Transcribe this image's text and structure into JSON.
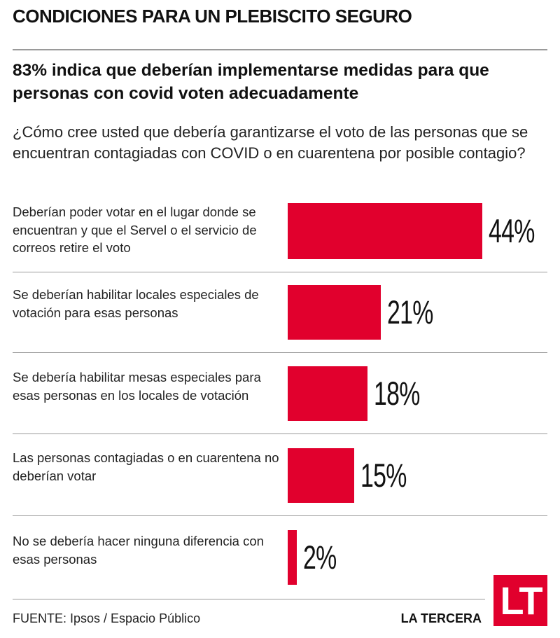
{
  "header": {
    "title": "CONDICIONES PARA UN PLEBISCITO SEGURO",
    "subtitle": "83% indica que deberían implementarse medidas para que personas con covid voten adecuadamente",
    "question": "¿Cómo cree usted que debería garantizarse el voto de las personas que se encuentran contagiadas con COVID o en cuarentena por posible contagio?"
  },
  "chart_data": {
    "type": "bar",
    "orientation": "horizontal",
    "categories": [
      "Deberían poder votar en el lugar donde se encuentran y que el Servel o el servicio de correos retire el voto",
      "Se deberían habilitar locales especiales de votación para esas personas",
      "Se debería habilitar mesas especiales para esas personas en los locales de votación",
      "Las personas contagiadas o en cuarentena no deberían votar",
      "No se debería hacer ninguna diferencia con esas personas"
    ],
    "values": [
      44,
      21,
      18,
      15,
      2
    ],
    "value_labels": [
      "44%",
      "21%",
      "18%",
      "15%",
      "2%"
    ],
    "xlim": [
      0,
      44
    ],
    "bar_color": "#e1002d",
    "grid": false
  },
  "footer": {
    "source": "FUENTE: Ipsos / Espacio Público",
    "brand": "LA TERCERA",
    "logo_text": "LT"
  }
}
